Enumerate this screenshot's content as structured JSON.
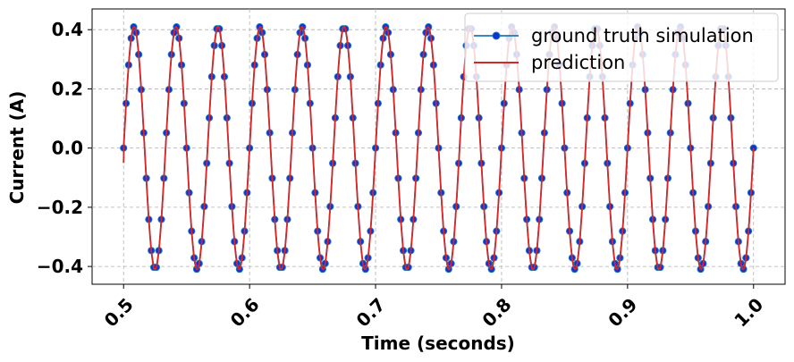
{
  "chart_data": {
    "type": "line",
    "xlabel": "Time (seconds)",
    "ylabel": "Current (A)",
    "xlim": [
      0.475,
      1.025
    ],
    "ylim": [
      -0.46,
      0.47
    ],
    "x_ticks": [
      0.5,
      0.6,
      0.7,
      0.8,
      0.9,
      1.0
    ],
    "x_tick_labels": [
      "0.5",
      "0.6",
      "0.7",
      "0.8",
      "0.9",
      "1.0"
    ],
    "y_ticks": [
      0.4,
      0.2,
      0.0,
      -0.2,
      -0.4
    ],
    "y_tick_labels": [
      "0.4",
      "0.2",
      "0.0",
      "−0.2",
      "−0.4"
    ],
    "grid": true,
    "legend_position": "top-right",
    "signal": {
      "form": "sine",
      "t_start": 0.5,
      "t_end": 1.0,
      "amplitude": 0.41,
      "frequency_hz": 30,
      "sample_interval": 0.002
    },
    "series": [
      {
        "name": "ground truth simulation",
        "style": "line+markers",
        "color": "#1f77b4",
        "marker_color": "#1030d8"
      },
      {
        "name": "prediction",
        "style": "line",
        "color": "#d62728"
      }
    ]
  }
}
